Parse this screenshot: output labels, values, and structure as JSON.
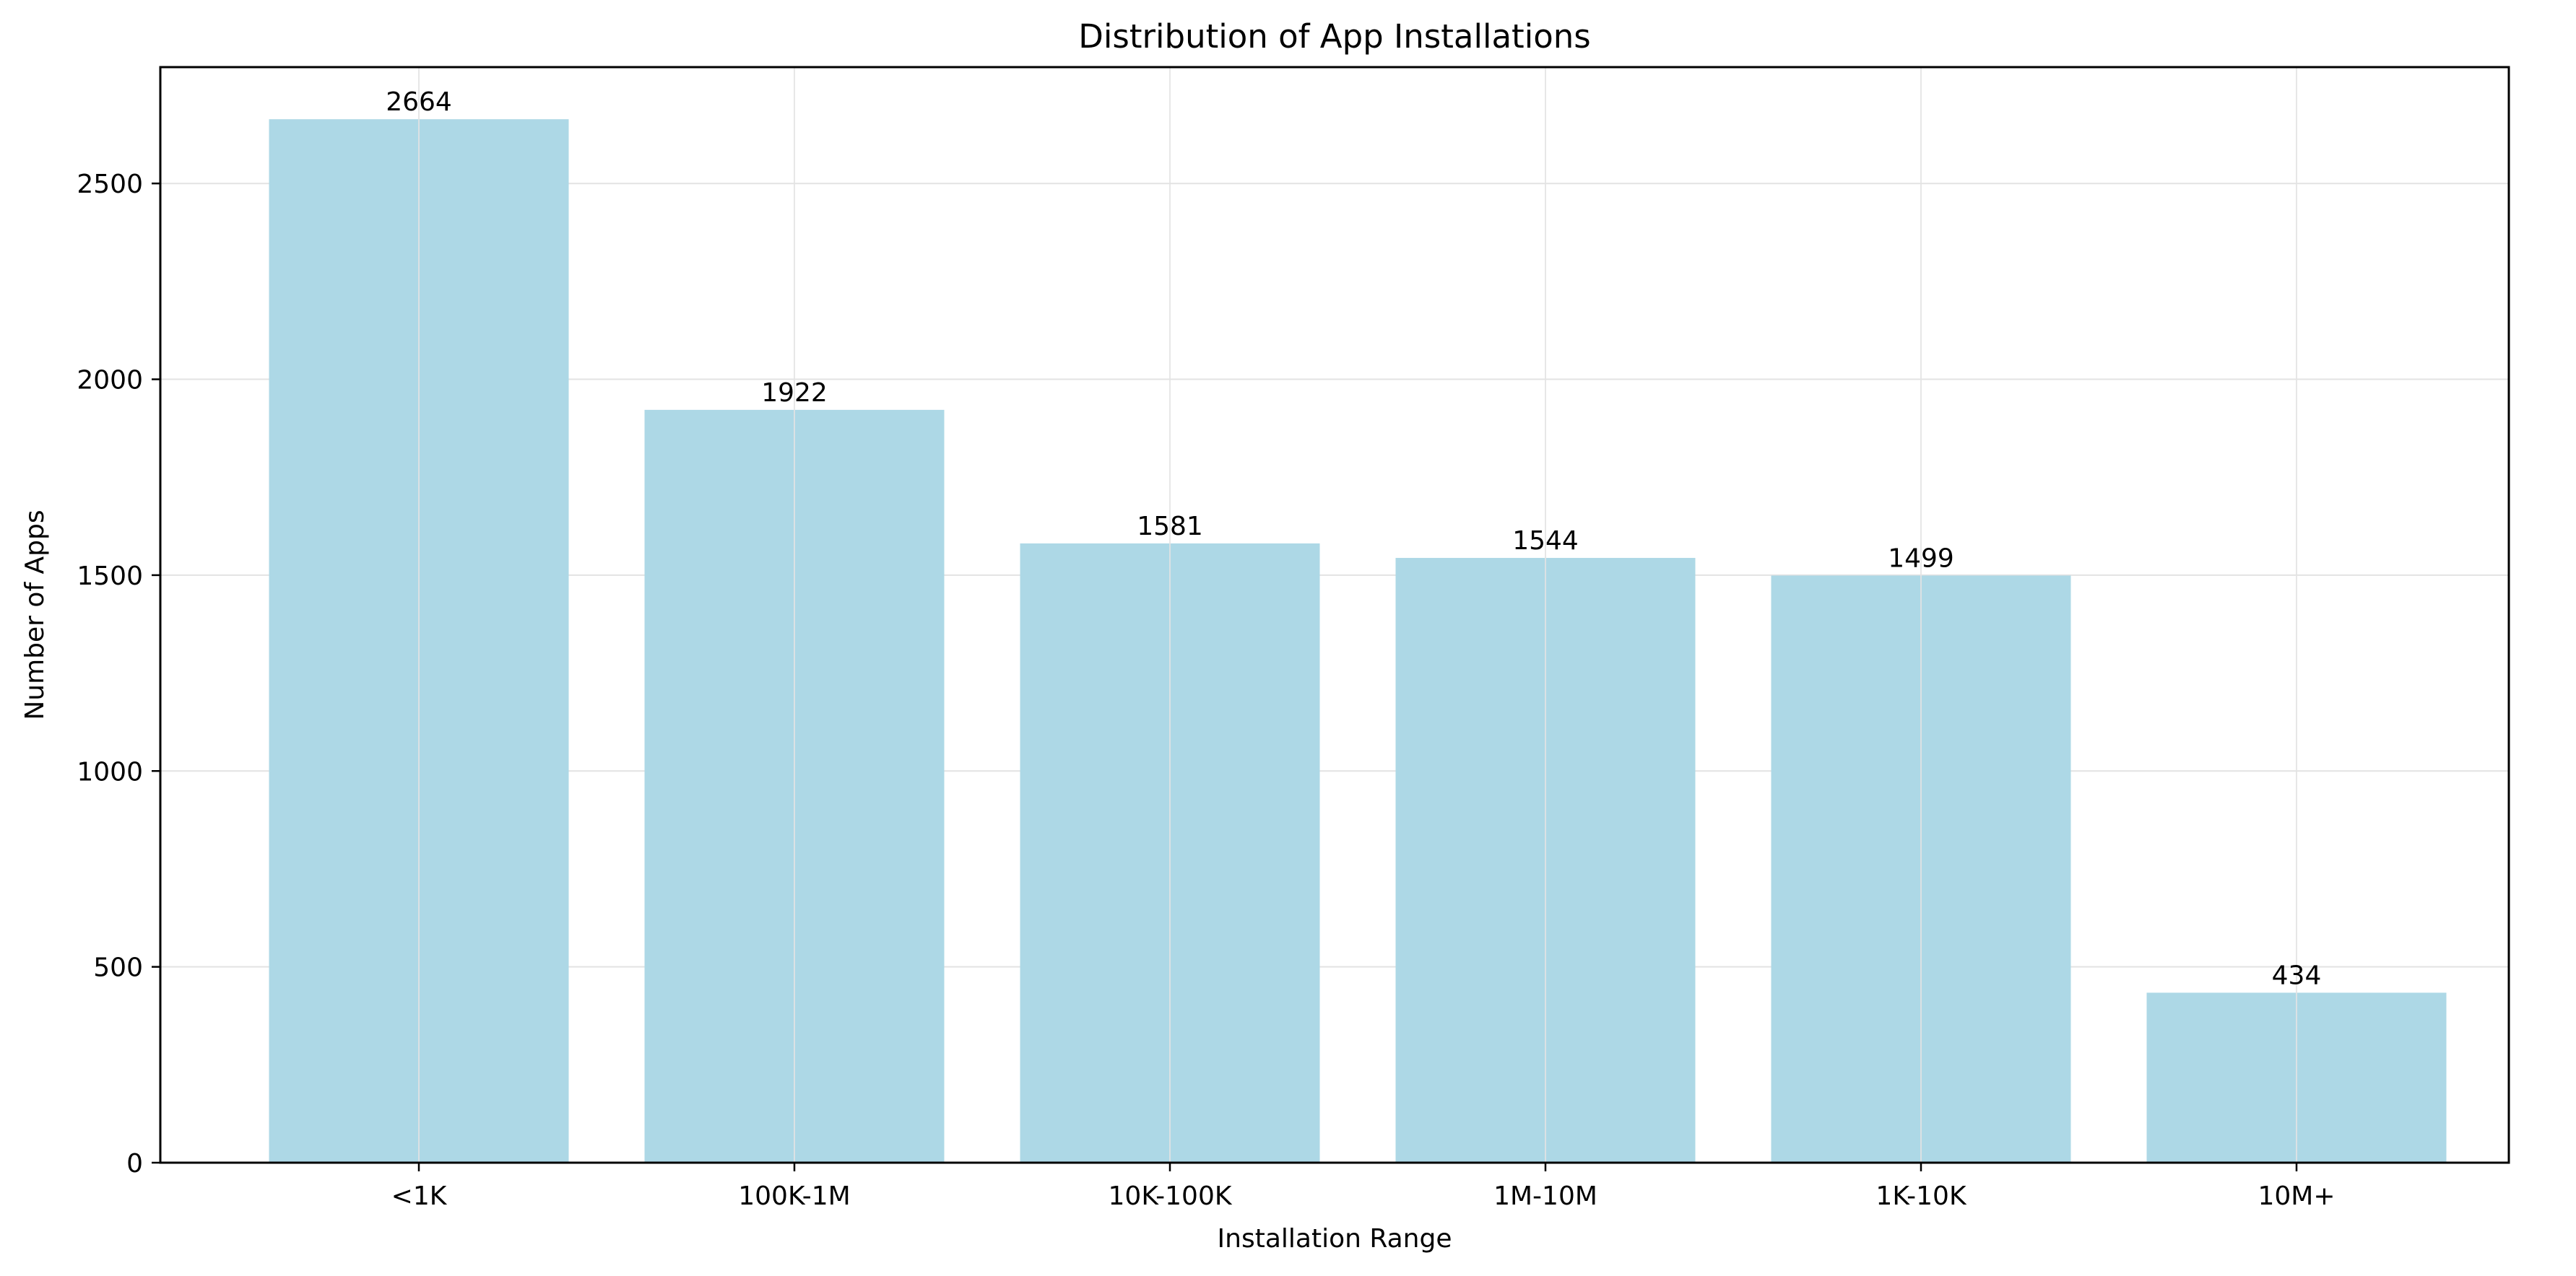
{
  "chart_data": {
    "type": "bar",
    "title": "Distribution of App Installations",
    "xlabel": "Installation Range",
    "ylabel": "Number of Apps",
    "categories": [
      "<1K",
      "100K-1M",
      "10K-100K",
      "1M-10M",
      "1K-10K",
      "10M+"
    ],
    "values": [
      2664,
      1922,
      1581,
      1544,
      1499,
      434
    ],
    "data_labels": [
      "2664",
      "1922",
      "1581",
      "1544",
      "1499",
      "434"
    ],
    "ylim": [
      0,
      2797
    ],
    "yticks": [
      0,
      500,
      1000,
      1500,
      2000,
      2500
    ],
    "ytick_labels": [
      "0",
      "500",
      "1000",
      "1500",
      "2000",
      "2500"
    ],
    "grid": true,
    "colors": {
      "bar": "#add8e6",
      "grid": "#e3e3e3",
      "axis": "#000000"
    }
  }
}
